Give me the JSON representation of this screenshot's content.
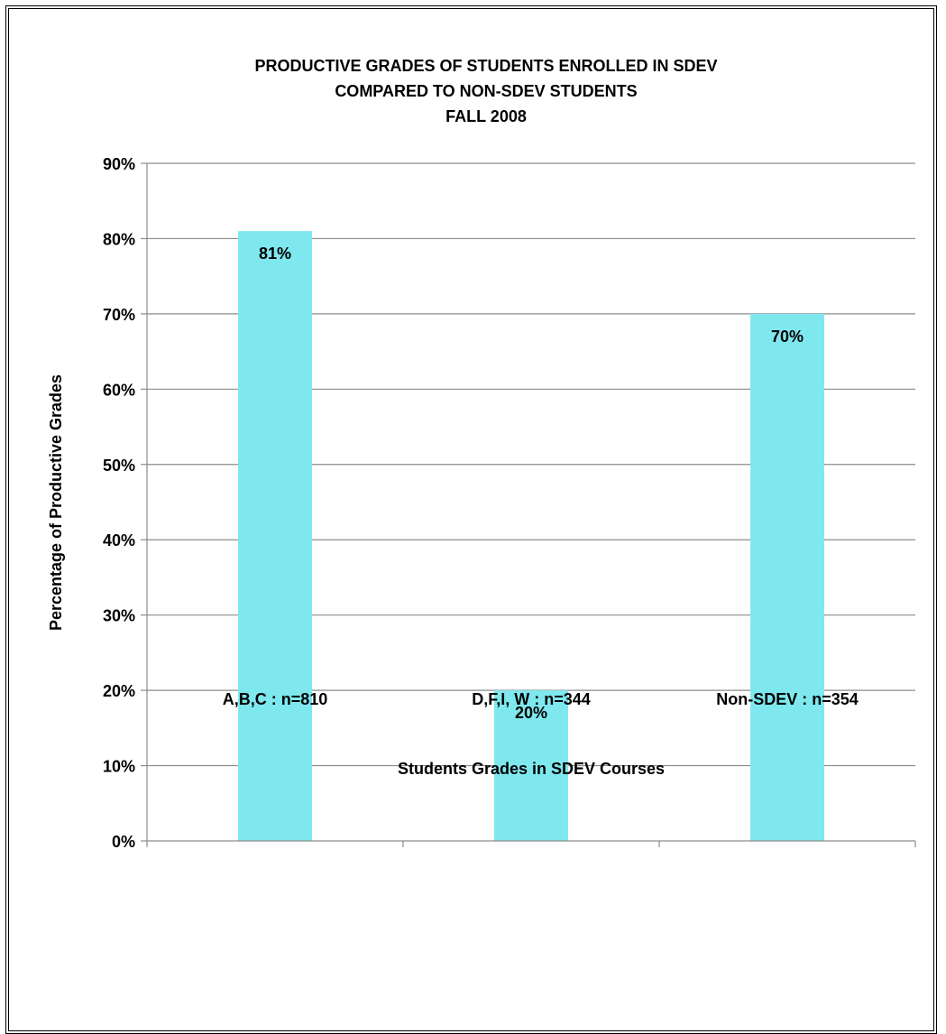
{
  "chart_data": {
    "type": "bar",
    "title": [
      "PRODUCTIVE GRADES OF STUDENTS ENROLLED IN SDEV",
      "COMPARED TO NON-SDEV STUDENTS",
      "FALL 2008"
    ],
    "categories": [
      "A,B,C : n=810",
      "D,F,I, W : n=344",
      "Non-SDEV : n=354"
    ],
    "values": [
      81,
      20,
      70
    ],
    "data_labels": [
      "81%",
      "20%",
      "70%"
    ],
    "xlabel": "Students Grades in SDEV Courses",
    "ylabel": "Percentage of Productive Grades",
    "ylim": [
      0,
      90
    ],
    "yticks": [
      "0%",
      "10%",
      "20%",
      "30%",
      "40%",
      "50%",
      "60%",
      "70%",
      "80%",
      "90%"
    ],
    "grid": true,
    "legend": "none",
    "bar_color": "#7FE8EE"
  }
}
